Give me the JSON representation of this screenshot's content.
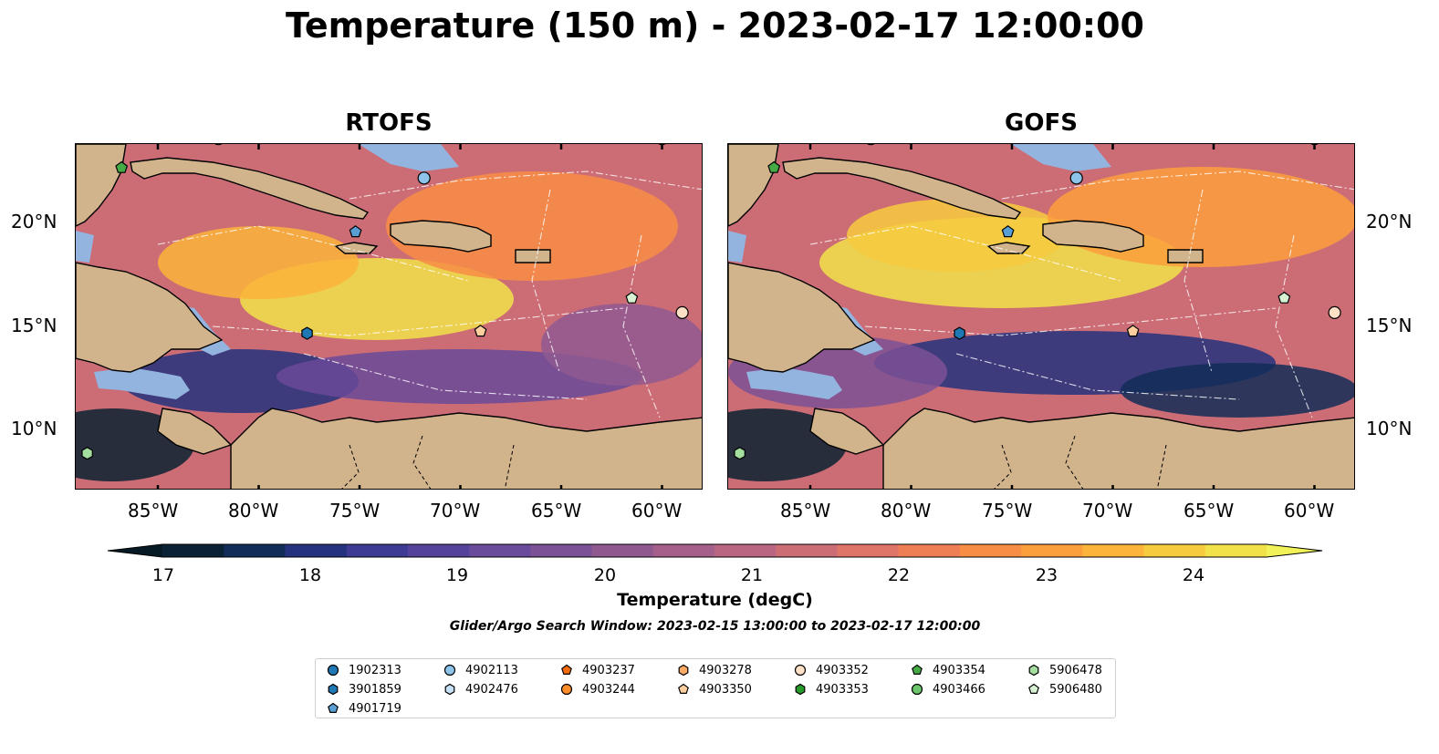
{
  "title": "Temperature (150 m) - 2023-02-17 12:00:00",
  "panels": [
    {
      "title": "RTOFS"
    },
    {
      "title": "GOFS"
    }
  ],
  "lon_ticks": [
    "85°W",
    "80°W",
    "75°W",
    "70°W",
    "65°W",
    "60°W"
  ],
  "lat_ticks": [
    "20°N",
    "15°N",
    "10°N"
  ],
  "colorbar": {
    "label": "Temperature (degC)",
    "ticks": [
      "17",
      "18",
      "19",
      "20",
      "21",
      "22",
      "23",
      "24"
    ],
    "colors": [
      "#0a2233",
      "#122d58",
      "#25337e",
      "#3d3b93",
      "#55429a",
      "#6a4a9a",
      "#7c5195",
      "#8f5990",
      "#a45f8a",
      "#b86681",
      "#cc6d76",
      "#df7468",
      "#ee7f55",
      "#f88d45",
      "#fb9f3c",
      "#fcb43a",
      "#f7cb3e",
      "#f1e24a"
    ],
    "over_color": "#f0f257",
    "under_color": "#061a26"
  },
  "search_window": "Glider/Argo Search Window: 2023-02-15 13:00:00 to 2023-02-17 12:00:00",
  "legend": [
    {
      "label": "1902313",
      "marker": "circle",
      "color": "#1f77b4"
    },
    {
      "label": "3901859",
      "marker": "hexagon",
      "color": "#1f77b4"
    },
    {
      "label": "4901719",
      "marker": "pentagon",
      "color": "#5a9fd4"
    },
    {
      "label": "4902113",
      "marker": "circle",
      "color": "#8ec3ea"
    },
    {
      "label": "4902476",
      "marker": "hexagon",
      "color": "#c6e0f5"
    },
    {
      "label": "4903237",
      "marker": "pentagon",
      "color": "#f26c0c"
    },
    {
      "label": "4903244",
      "marker": "circle",
      "color": "#fd8c2b"
    },
    {
      "label": "4903278",
      "marker": "hexagon",
      "color": "#fdab67"
    },
    {
      "label": "4903350",
      "marker": "pentagon",
      "color": "#fdcf9f"
    },
    {
      "label": "4903352",
      "marker": "circle",
      "color": "#fde0c6"
    },
    {
      "label": "4903353",
      "marker": "hexagon",
      "color": "#2a9a2a"
    },
    {
      "label": "4903354",
      "marker": "pentagon",
      "color": "#45ab45"
    },
    {
      "label": "4903466",
      "marker": "circle",
      "color": "#6cc66c"
    },
    {
      "label": "5906478",
      "marker": "hexagon",
      "color": "#a4dfa0"
    },
    {
      "label": "5906480",
      "marker": "pentagon",
      "color": "#d7f2d2"
    }
  ]
}
